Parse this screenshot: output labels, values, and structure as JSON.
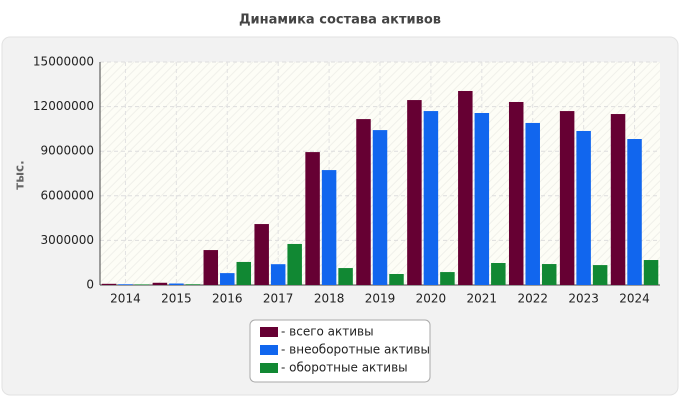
{
  "chart_data": {
    "type": "bar",
    "title": "Динамика состава активов",
    "y_label": "тыс.",
    "categories": [
      "2014",
      "2015",
      "2016",
      "2017",
      "2018",
      "2019",
      "2020",
      "2021",
      "2022",
      "2023",
      "2024"
    ],
    "series": [
      {
        "name": "- всего активы",
        "color": "#660033",
        "values": [
          80000,
          150000,
          2350000,
          4100000,
          8940000,
          11160000,
          12440000,
          13050000,
          12310000,
          11700000,
          11500000
        ]
      },
      {
        "name": "- внеоборотные активы",
        "color": "#1166ee",
        "values": [
          50000,
          100000,
          800000,
          1400000,
          7730000,
          10420000,
          11700000,
          11570000,
          10900000,
          10360000,
          9820000
        ]
      },
      {
        "name": "- оборотные активы",
        "color": "#118833",
        "values": [
          40000,
          50000,
          1550000,
          2760000,
          1140000,
          740000,
          870000,
          1480000,
          1410000,
          1340000,
          1680000
        ]
      }
    ],
    "ylim": [
      0,
      15000000
    ],
    "yticks": [
      0,
      3000000,
      6000000,
      9000000,
      12000000,
      15000000
    ],
    "grid": true,
    "legend": "bottom"
  }
}
